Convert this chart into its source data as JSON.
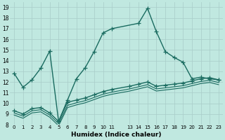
{
  "title": "",
  "xlabel": "Humidex (Indice chaleur)",
  "bg_color": "#c0e8e0",
  "grid_color": "#a8ccc8",
  "line_color": "#1a6b60",
  "xlim": [
    -0.5,
    23.5
  ],
  "ylim": [
    8,
    19.5
  ],
  "xticks": [
    0,
    1,
    2,
    3,
    4,
    5,
    6,
    7,
    8,
    9,
    10,
    11,
    13,
    14,
    15,
    16,
    17,
    18,
    19,
    20,
    21,
    22,
    23
  ],
  "yticks": [
    8,
    9,
    10,
    11,
    12,
    13,
    14,
    15,
    16,
    17,
    18,
    19
  ],
  "series": [
    {
      "x": [
        0,
        1,
        2,
        3,
        4,
        5,
        6,
        7,
        8,
        9,
        10,
        11,
        14,
        15,
        16,
        17,
        18,
        19,
        20,
        21,
        22,
        23
      ],
      "y": [
        12.8,
        11.5,
        12.2,
        13.3,
        14.9,
        8.3,
        10.3,
        12.3,
        13.35,
        14.85,
        16.6,
        17.0,
        17.5,
        18.9,
        16.7,
        14.85,
        14.3,
        13.85,
        12.3,
        12.45,
        12.3,
        12.2
      ],
      "marker": "+",
      "lw": 1.0,
      "ms": 4
    },
    {
      "x": [
        0,
        1,
        2,
        3,
        4,
        5,
        6,
        7,
        8,
        9,
        10,
        11,
        13,
        14,
        15,
        16,
        17,
        18,
        19,
        20,
        21,
        22,
        23
      ],
      "y": [
        9.3,
        9.0,
        9.5,
        9.6,
        9.1,
        8.3,
        10.1,
        10.3,
        10.5,
        10.8,
        11.1,
        11.3,
        11.6,
        11.8,
        12.0,
        11.6,
        11.7,
        11.8,
        11.9,
        12.1,
        12.3,
        12.4,
        12.2
      ],
      "marker": "+",
      "lw": 1.0,
      "ms": 4
    },
    {
      "x": [
        0,
        1,
        2,
        3,
        4,
        5,
        6,
        7,
        8,
        9,
        10,
        11,
        13,
        14,
        15,
        16,
        17,
        18,
        19,
        20,
        21,
        22,
        23
      ],
      "y": [
        9.1,
        8.8,
        9.3,
        9.4,
        8.9,
        8.1,
        9.8,
        10.05,
        10.25,
        10.55,
        10.85,
        11.05,
        11.35,
        11.55,
        11.75,
        11.35,
        11.45,
        11.55,
        11.65,
        11.85,
        12.05,
        12.15,
        11.95
      ],
      "marker": null,
      "lw": 0.8,
      "ms": 0
    },
    {
      "x": [
        0,
        1,
        2,
        3,
        4,
        5,
        6,
        7,
        8,
        9,
        10,
        11,
        13,
        14,
        15,
        16,
        17,
        18,
        19,
        20,
        21,
        22,
        23
      ],
      "y": [
        8.9,
        8.6,
        9.1,
        9.2,
        8.7,
        7.9,
        9.6,
        9.85,
        10.05,
        10.35,
        10.65,
        10.85,
        11.15,
        11.35,
        11.55,
        11.15,
        11.25,
        11.35,
        11.45,
        11.65,
        11.85,
        11.95,
        11.75
      ],
      "marker": null,
      "lw": 0.8,
      "ms": 0
    }
  ]
}
